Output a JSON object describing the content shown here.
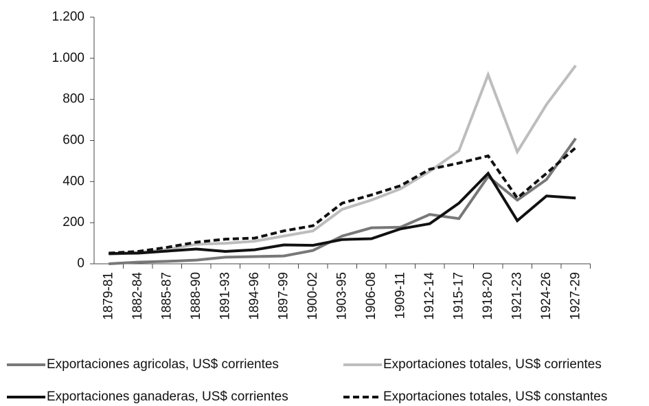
{
  "chart_data": {
    "type": "line",
    "categories": [
      "1879-81",
      "1882-84",
      "1885-87",
      "1888-90",
      "1891-93",
      "1894-96",
      "1897-99",
      "1900-02",
      "1903-95",
      "1906-08",
      "1909-11",
      "1912-14",
      "1915-17",
      "1918-20",
      "1921-23",
      "1924-26",
      "1927-29"
    ],
    "series": [
      {
        "name": "Exportaciones agricolas, US$ corrientes",
        "color": "#787878",
        "dash": false,
        "values": [
          0,
          8,
          12,
          18,
          32,
          35,
          38,
          65,
          135,
          175,
          178,
          240,
          220,
          425,
          310,
          410,
          610
        ]
      },
      {
        "name": "Exportaciones totales, US$ corrientes",
        "color": "#bdbdbd",
        "dash": false,
        "values": [
          45,
          55,
          70,
          95,
          100,
          110,
          135,
          160,
          265,
          310,
          365,
          450,
          550,
          920,
          545,
          775,
          965
        ]
      },
      {
        "name": "Exportaciones ganaderas, US$ corrientes",
        "color": "#111111",
        "dash": false,
        "values": [
          50,
          52,
          62,
          72,
          60,
          68,
          92,
          90,
          118,
          122,
          170,
          195,
          295,
          440,
          210,
          330,
          320
        ]
      },
      {
        "name": "Exportaciones totales, US$ constantes",
        "color": "#111111",
        "dash": true,
        "values": [
          52,
          60,
          80,
          105,
          120,
          125,
          160,
          185,
          295,
          335,
          380,
          460,
          490,
          525,
          320,
          440,
          565
        ]
      }
    ],
    "ylim": [
      0,
      1200
    ],
    "yticks": [
      0,
      200,
      400,
      600,
      800,
      {
        "value": 1000,
        "label": "1.000"
      },
      {
        "value": 1200,
        "label": "1.200"
      }
    ],
    "grid": false
  }
}
